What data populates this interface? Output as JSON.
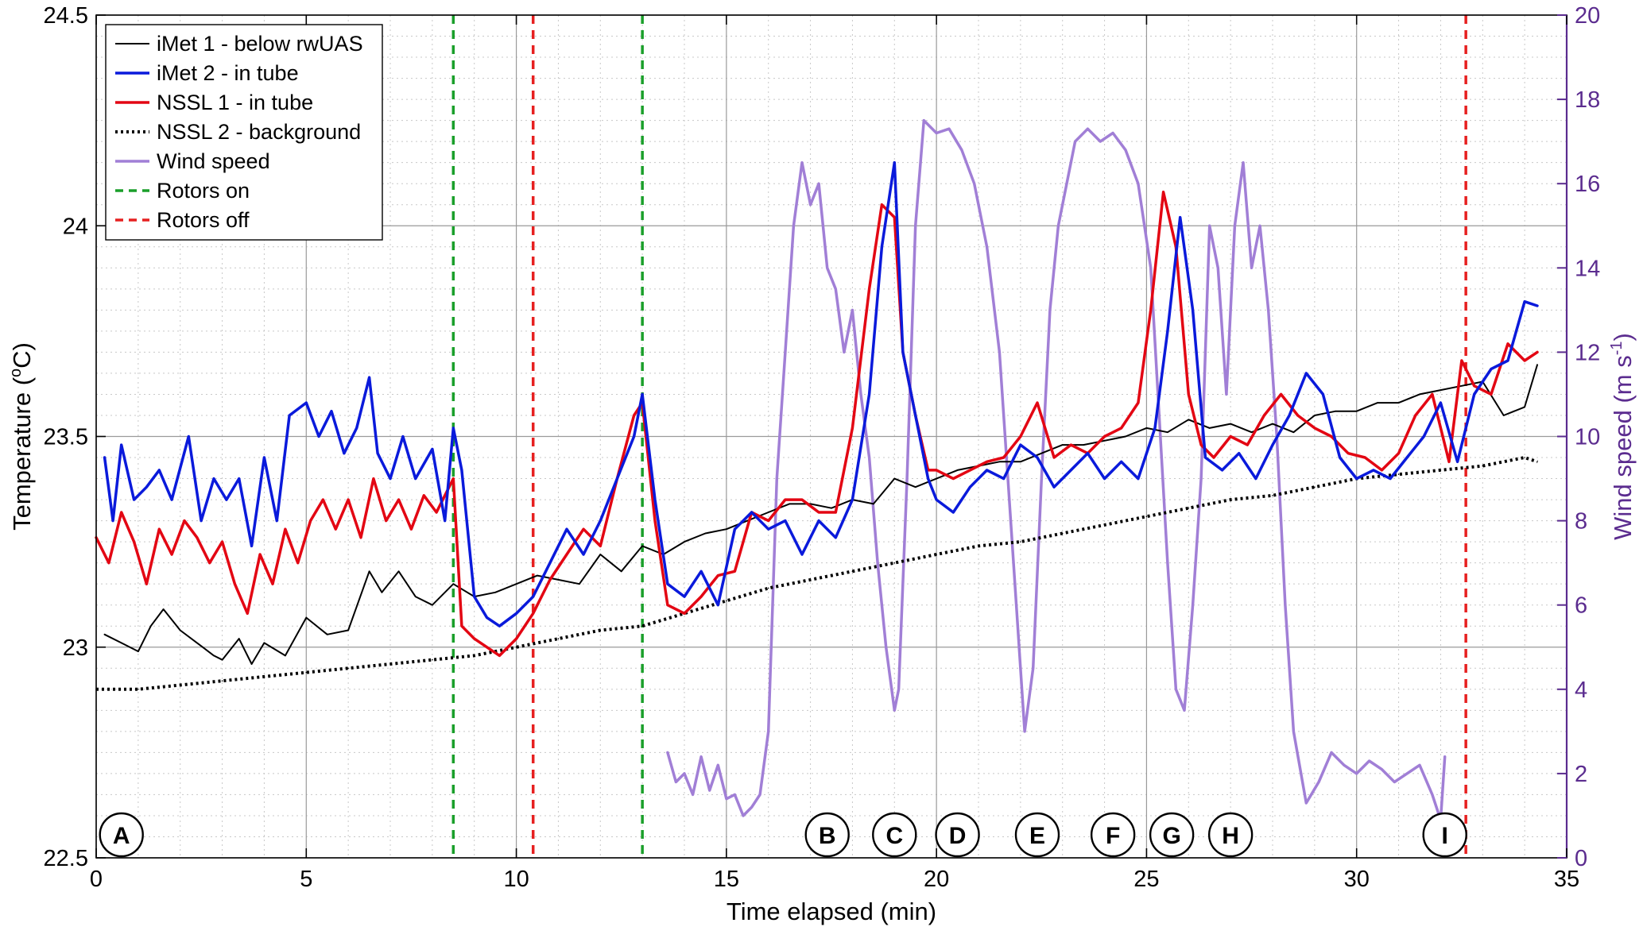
{
  "chart_data": {
    "type": "line",
    "xlabel": "Time elapsed (min)",
    "ylabel": "Temperature (oC)",
    "ylabel_parts": {
      "base": "Temperature (",
      "sup": "o",
      "rest": "C)"
    },
    "y2label": "Wind speed (m s-1)",
    "y2label_parts": {
      "base": "Wind speed (m s",
      "sup": "-1",
      "rest": ")"
    },
    "xlim": [
      0,
      35
    ],
    "ylim": [
      22.5,
      24.5
    ],
    "y2lim": [
      0,
      20
    ],
    "grid": true,
    "legend_position": "top-left",
    "x_ticks": [
      "0",
      "5",
      "10",
      "15",
      "20",
      "25",
      "30",
      "35"
    ],
    "y_ticks": [
      "22.5",
      "23",
      "23.5",
      "24",
      "24.5"
    ],
    "y2_ticks": [
      "0",
      "2",
      "4",
      "6",
      "8",
      "10",
      "12",
      "14",
      "16",
      "18",
      "20"
    ],
    "colors": {
      "imet1": "#000000",
      "imet2": "#0a1adb",
      "nssl1": "#e30613",
      "nssl2": "#000000",
      "wind": "#a17fd6",
      "rotors_on": "#1a9f2a",
      "rotors_off": "#e62020",
      "right_axis": "#5b2c8f"
    },
    "series": [
      {
        "name": "iMet 1 - below rwUAS",
        "key": "imet1",
        "axis": "left",
        "style": "solid",
        "x": [
          0.2,
          0.6,
          1.0,
          1.3,
          1.6,
          2.0,
          2.4,
          2.8,
          3.0,
          3.4,
          3.7,
          4.0,
          4.5,
          5.0,
          5.5,
          6.0,
          6.5,
          6.8,
          7.2,
          7.6,
          8.0,
          8.5,
          9.0,
          9.5,
          10.0,
          10.5,
          11.0,
          11.5,
          12.0,
          12.5,
          13.0,
          13.5,
          14.0,
          14.5,
          15.0,
          15.5,
          16.0,
          16.5,
          17.0,
          17.5,
          18.0,
          18.5,
          19.0,
          19.5,
          20.0,
          20.5,
          21.0,
          21.5,
          22.0,
          22.5,
          23.0,
          23.5,
          24.0,
          24.5,
          25.0,
          25.5,
          26.0,
          26.5,
          27.0,
          27.5,
          28.0,
          28.5,
          29.0,
          29.5,
          30.0,
          30.5,
          31.0,
          31.5,
          32.0,
          32.5,
          33.0,
          33.5,
          34.0,
          34.3
        ],
        "y": [
          23.03,
          23.01,
          22.99,
          23.05,
          23.09,
          23.04,
          23.01,
          22.98,
          22.97,
          23.02,
          22.96,
          23.01,
          22.98,
          23.07,
          23.03,
          23.04,
          23.18,
          23.13,
          23.18,
          23.12,
          23.1,
          23.15,
          23.12,
          23.13,
          23.15,
          23.17,
          23.16,
          23.15,
          23.22,
          23.18,
          23.24,
          23.22,
          23.25,
          23.27,
          23.28,
          23.3,
          23.32,
          23.34,
          23.34,
          23.33,
          23.35,
          23.34,
          23.4,
          23.38,
          23.4,
          23.42,
          23.43,
          23.44,
          23.44,
          23.46,
          23.48,
          23.48,
          23.49,
          23.5,
          23.52,
          23.51,
          23.54,
          23.52,
          23.53,
          23.51,
          23.53,
          23.51,
          23.55,
          23.56,
          23.56,
          23.58,
          23.58,
          23.6,
          23.61,
          23.62,
          23.63,
          23.55,
          23.57,
          23.67
        ]
      },
      {
        "name": "iMet 2 - in tube",
        "key": "imet2",
        "axis": "left",
        "style": "solid",
        "x": [
          0.2,
          0.4,
          0.6,
          0.9,
          1.2,
          1.5,
          1.8,
          2.2,
          2.5,
          2.8,
          3.1,
          3.4,
          3.7,
          4.0,
          4.3,
          4.6,
          5.0,
          5.3,
          5.6,
          5.9,
          6.2,
          6.5,
          6.7,
          7.0,
          7.3,
          7.6,
          8.0,
          8.3,
          8.5,
          8.7,
          9.0,
          9.3,
          9.6,
          10.0,
          10.4,
          10.8,
          11.2,
          11.6,
          12.0,
          12.4,
          12.8,
          13.0,
          13.3,
          13.6,
          14.0,
          14.4,
          14.8,
          15.2,
          15.6,
          16.0,
          16.4,
          16.8,
          17.2,
          17.6,
          18.0,
          18.4,
          18.7,
          19.0,
          19.2,
          19.5,
          19.8,
          20.0,
          20.4,
          20.8,
          21.2,
          21.6,
          22.0,
          22.4,
          22.8,
          23.2,
          23.6,
          24.0,
          24.4,
          24.8,
          25.2,
          25.5,
          25.8,
          26.1,
          26.4,
          26.8,
          27.2,
          27.6,
          28.0,
          28.4,
          28.8,
          29.2,
          29.6,
          30.0,
          30.4,
          30.8,
          31.2,
          31.6,
          32.0,
          32.4,
          32.8,
          33.2,
          33.6,
          34.0,
          34.3
        ],
        "y": [
          23.45,
          23.3,
          23.48,
          23.35,
          23.38,
          23.42,
          23.35,
          23.5,
          23.3,
          23.4,
          23.35,
          23.4,
          23.24,
          23.45,
          23.3,
          23.55,
          23.58,
          23.5,
          23.56,
          23.46,
          23.52,
          23.64,
          23.46,
          23.4,
          23.5,
          23.4,
          23.47,
          23.3,
          23.52,
          23.42,
          23.12,
          23.07,
          23.05,
          23.08,
          23.12,
          23.2,
          23.28,
          23.22,
          23.3,
          23.4,
          23.5,
          23.6,
          23.35,
          23.15,
          23.12,
          23.18,
          23.1,
          23.28,
          23.32,
          23.28,
          23.3,
          23.22,
          23.3,
          23.26,
          23.35,
          23.6,
          23.95,
          24.15,
          23.7,
          23.55,
          23.4,
          23.35,
          23.32,
          23.38,
          23.42,
          23.4,
          23.48,
          23.45,
          23.38,
          23.42,
          23.46,
          23.4,
          23.44,
          23.4,
          23.52,
          23.75,
          24.02,
          23.8,
          23.45,
          23.42,
          23.46,
          23.4,
          23.48,
          23.55,
          23.65,
          23.6,
          23.45,
          23.4,
          23.42,
          23.4,
          23.45,
          23.5,
          23.58,
          23.44,
          23.6,
          23.66,
          23.68,
          23.82,
          23.81
        ]
      },
      {
        "name": "NSSL 1 - in tube",
        "key": "nssl1",
        "axis": "left",
        "style": "solid",
        "x": [
          0.0,
          0.3,
          0.6,
          0.9,
          1.2,
          1.5,
          1.8,
          2.1,
          2.4,
          2.7,
          3.0,
          3.3,
          3.6,
          3.9,
          4.2,
          4.5,
          4.8,
          5.1,
          5.4,
          5.7,
          6.0,
          6.3,
          6.6,
          6.9,
          7.2,
          7.5,
          7.8,
          8.1,
          8.4,
          8.5,
          8.7,
          9.0,
          9.3,
          9.6,
          10.0,
          10.4,
          10.8,
          11.2,
          11.6,
          12.0,
          12.4,
          12.8,
          13.0,
          13.3,
          13.6,
          14.0,
          14.4,
          14.8,
          15.2,
          15.6,
          16.0,
          16.4,
          16.8,
          17.2,
          17.6,
          18.0,
          18.4,
          18.7,
          19.0,
          19.2,
          19.5,
          19.8,
          20.0,
          20.4,
          20.8,
          21.2,
          21.6,
          22.0,
          22.4,
          22.8,
          23.2,
          23.6,
          24.0,
          24.4,
          24.8,
          25.1,
          25.4,
          25.7,
          26.0,
          26.3,
          26.6,
          27.0,
          27.4,
          27.8,
          28.2,
          28.6,
          29.0,
          29.4,
          29.8,
          30.2,
          30.6,
          31.0,
          31.4,
          31.8,
          32.2,
          32.5,
          32.8,
          33.2,
          33.6,
          34.0,
          34.3
        ],
        "y": [
          23.26,
          23.2,
          23.32,
          23.25,
          23.15,
          23.28,
          23.22,
          23.3,
          23.26,
          23.2,
          23.25,
          23.15,
          23.08,
          23.22,
          23.15,
          23.28,
          23.2,
          23.3,
          23.35,
          23.28,
          23.35,
          23.26,
          23.4,
          23.3,
          23.35,
          23.28,
          23.36,
          23.32,
          23.38,
          23.4,
          23.05,
          23.02,
          23.0,
          22.98,
          23.02,
          23.08,
          23.16,
          23.22,
          23.28,
          23.24,
          23.4,
          23.55,
          23.58,
          23.3,
          23.1,
          23.08,
          23.12,
          23.17,
          23.18,
          23.32,
          23.3,
          23.35,
          23.35,
          23.32,
          23.32,
          23.52,
          23.85,
          24.05,
          24.02,
          23.7,
          23.55,
          23.42,
          23.42,
          23.4,
          23.42,
          23.44,
          23.45,
          23.5,
          23.58,
          23.45,
          23.48,
          23.46,
          23.5,
          23.52,
          23.58,
          23.8,
          24.08,
          23.95,
          23.6,
          23.48,
          23.45,
          23.5,
          23.48,
          23.55,
          23.6,
          23.55,
          23.52,
          23.5,
          23.46,
          23.45,
          23.42,
          23.46,
          23.55,
          23.6,
          23.44,
          23.68,
          23.62,
          23.6,
          23.72,
          23.68,
          23.7
        ]
      },
      {
        "name": "NSSL 2 - background",
        "key": "nssl2",
        "axis": "left",
        "style": "dotted",
        "x": [
          0.0,
          1.0,
          2.0,
          3.0,
          4.0,
          5.0,
          6.0,
          7.0,
          8.0,
          9.0,
          10.0,
          11.0,
          12.0,
          13.0,
          14.0,
          15.0,
          16.0,
          17.0,
          18.0,
          19.0,
          20.0,
          21.0,
          22.0,
          23.0,
          24.0,
          25.0,
          26.0,
          27.0,
          28.0,
          29.0,
          30.0,
          31.0,
          32.0,
          33.0,
          34.0,
          34.3
        ],
        "y": [
          22.9,
          22.9,
          22.91,
          22.92,
          22.93,
          22.94,
          22.95,
          22.96,
          22.97,
          22.98,
          23.0,
          23.02,
          23.04,
          23.05,
          23.08,
          23.11,
          23.14,
          23.16,
          23.18,
          23.2,
          23.22,
          23.24,
          23.25,
          23.27,
          23.29,
          23.31,
          23.33,
          23.35,
          23.36,
          23.38,
          23.4,
          23.41,
          23.42,
          23.43,
          23.45,
          23.44
        ]
      },
      {
        "name": "Wind speed",
        "key": "wind",
        "axis": "right",
        "style": "solid",
        "x": [
          13.6,
          13.8,
          14.0,
          14.2,
          14.4,
          14.6,
          14.8,
          15.0,
          15.2,
          15.4,
          15.6,
          15.8,
          16.0,
          16.2,
          16.4,
          16.6,
          16.8,
          17.0,
          17.2,
          17.4,
          17.6,
          17.8,
          18.0,
          18.2,
          18.4,
          18.6,
          18.8,
          19.0,
          19.1,
          19.3,
          19.5,
          19.7,
          20.0,
          20.3,
          20.6,
          20.9,
          21.2,
          21.5,
          21.7,
          21.9,
          22.1,
          22.3,
          22.5,
          22.7,
          22.9,
          23.1,
          23.3,
          23.6,
          23.9,
          24.2,
          24.5,
          24.8,
          25.1,
          25.3,
          25.5,
          25.7,
          25.9,
          26.1,
          26.3,
          26.5,
          26.7,
          26.9,
          27.1,
          27.3,
          27.5,
          27.7,
          27.9,
          28.1,
          28.3,
          28.5,
          28.8,
          29.1,
          29.4,
          29.7,
          30.0,
          30.3,
          30.6,
          30.9,
          31.2,
          31.5,
          31.8,
          32.0,
          32.1
        ],
        "y": [
          2.5,
          1.8,
          2.0,
          1.5,
          2.4,
          1.6,
          2.2,
          1.4,
          1.5,
          1.0,
          1.2,
          1.5,
          3.0,
          9.0,
          12.0,
          15.0,
          16.5,
          15.5,
          16.0,
          14.0,
          13.5,
          12.0,
          13.0,
          11.0,
          9.5,
          7.0,
          5.0,
          3.5,
          4.0,
          9.0,
          15.0,
          17.5,
          17.2,
          17.3,
          16.8,
          16.0,
          14.5,
          12.0,
          9.0,
          6.0,
          3.0,
          4.5,
          9.0,
          13.0,
          15.0,
          16.0,
          17.0,
          17.3,
          17.0,
          17.2,
          16.8,
          16.0,
          14.0,
          10.5,
          7.0,
          4.0,
          3.5,
          6.0,
          9.0,
          15.0,
          14.0,
          11.0,
          15.0,
          16.5,
          14.0,
          15.0,
          13.0,
          10.0,
          6.0,
          3.0,
          1.3,
          1.8,
          2.5,
          2.2,
          2.0,
          2.3,
          2.1,
          1.8,
          2.0,
          2.2,
          1.5,
          0.9,
          2.4
        ]
      }
    ],
    "vertical_lines": [
      {
        "label": "Rotors on",
        "key": "rotors_on",
        "x": [
          8.5,
          13.0
        ]
      },
      {
        "label": "Rotors off",
        "key": "rotors_off",
        "x": [
          10.4,
          32.6
        ]
      }
    ],
    "legend": [
      {
        "label": "iMet 1 - below rwUAS",
        "key": "imet1",
        "style": "solid"
      },
      {
        "label": "iMet 2 - in tube",
        "key": "imet2",
        "style": "solid"
      },
      {
        "label": "NSSL 1 - in tube",
        "key": "nssl1",
        "style": "solid"
      },
      {
        "label": "NSSL 2 - background",
        "key": "nssl2",
        "style": "dotted"
      },
      {
        "label": "Wind speed",
        "key": "wind",
        "style": "solid"
      },
      {
        "label": "Rotors on",
        "key": "rotors_on",
        "style": "dashed"
      },
      {
        "label": "Rotors off",
        "key": "rotors_off",
        "style": "dashed"
      }
    ],
    "annotations": [
      {
        "label": "A",
        "x": 0.6
      },
      {
        "label": "B",
        "x": 17.4
      },
      {
        "label": "C",
        "x": 19.0
      },
      {
        "label": "D",
        "x": 20.5
      },
      {
        "label": "E",
        "x": 22.4
      },
      {
        "label": "F",
        "x": 24.2
      },
      {
        "label": "G",
        "x": 25.6
      },
      {
        "label": "H",
        "x": 27.0
      },
      {
        "label": "I",
        "x": 32.1
      }
    ]
  }
}
